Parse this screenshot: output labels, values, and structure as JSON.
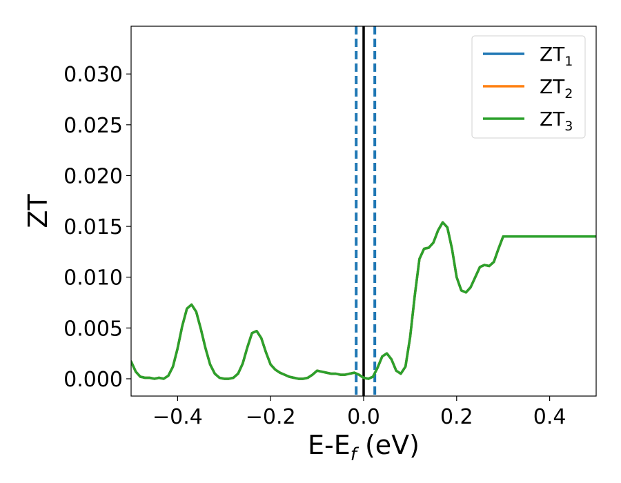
{
  "chart_data": {
    "type": "line",
    "xlabel": "E-E",
    "xlabel_sub": "f",
    "xlabel_unit": " (eV)",
    "ylabel": "ZT",
    "xlim": [
      -0.5,
      0.5
    ],
    "ylim": [
      -0.0017,
      0.0347
    ],
    "xticks": [
      -0.4,
      -0.2,
      0.0,
      0.2,
      0.4
    ],
    "xtick_labels": [
      "−0.4",
      "−0.2",
      "0.0",
      "0.2",
      "0.4"
    ],
    "yticks": [
      0.0,
      0.005,
      0.01,
      0.015,
      0.02,
      0.025,
      0.03
    ],
    "ytick_labels": [
      "0.000",
      "0.005",
      "0.010",
      "0.015",
      "0.020",
      "0.025",
      "0.030"
    ],
    "legend_position": "top-right",
    "series": [
      {
        "name": "ZT",
        "name_sub": "1",
        "color": "#1f77b4",
        "x": [
          -0.5,
          -0.49,
          -0.48,
          -0.47,
          -0.46,
          -0.45,
          -0.44,
          -0.43,
          -0.42,
          -0.41,
          -0.4,
          -0.39,
          -0.38,
          -0.37,
          -0.36,
          -0.35,
          -0.34,
          -0.33,
          -0.32,
          -0.31,
          -0.3,
          -0.29,
          -0.28,
          -0.27,
          -0.26,
          -0.25,
          -0.24,
          -0.23,
          -0.22,
          -0.21,
          -0.2,
          -0.19,
          -0.18,
          -0.17,
          -0.16,
          -0.15,
          -0.14,
          -0.13,
          -0.12,
          -0.11,
          -0.1,
          -0.09,
          -0.08,
          -0.07,
          -0.06,
          -0.05,
          -0.04,
          -0.03,
          -0.02,
          -0.01,
          0.0,
          0.01,
          0.02,
          0.03,
          0.04,
          0.05,
          0.06,
          0.07,
          0.08,
          0.09,
          0.1,
          0.11,
          0.12,
          0.13,
          0.14,
          0.15,
          0.16,
          0.17,
          0.18,
          0.19,
          0.2,
          0.21,
          0.22,
          0.23,
          0.24,
          0.25,
          0.26,
          0.27,
          0.28,
          0.29,
          0.3,
          0.31,
          0.32,
          0.33,
          0.34,
          0.35,
          0.36,
          0.37,
          0.38,
          0.39,
          0.4,
          0.41,
          0.42,
          0.43,
          0.44,
          0.45,
          0.46,
          0.47,
          0.48,
          0.49,
          0.5
        ],
        "y": [
          0.0017,
          0.0007,
          0.0002,
          0.0001,
          0.0001,
          0.0,
          0.0001,
          0.0,
          0.0003,
          0.0012,
          0.003,
          0.0052,
          0.0069,
          0.0073,
          0.0066,
          0.0049,
          0.003,
          0.0014,
          0.0005,
          0.0001,
          0.0,
          0.0,
          0.0001,
          0.0005,
          0.0015,
          0.0031,
          0.0045,
          0.0047,
          0.004,
          0.0026,
          0.0014,
          0.0009,
          0.0006,
          0.0004,
          0.0002,
          0.0001,
          0.0,
          0.0,
          0.0001,
          0.0004,
          0.0008,
          0.0007,
          0.0006,
          0.0005,
          0.0005,
          0.0004,
          0.0004,
          0.0005,
          0.0006,
          0.0004,
          0.0001,
          0.0,
          0.0002,
          0.0011,
          0.0022,
          0.0025,
          0.0019,
          0.0008,
          0.0005,
          0.0012,
          0.0041,
          0.0082,
          0.0118,
          0.0128,
          0.0129,
          0.0134,
          0.0146,
          0.0154,
          0.0149,
          0.0128,
          0.01,
          0.0087,
          0.0085,
          0.009,
          0.01,
          0.011,
          0.0112,
          0.0111,
          0.0115,
          0.0128,
          0.014,
          0.014,
          0.014,
          0.014,
          0.014,
          0.014,
          0.014,
          0.014,
          0.014,
          0.014,
          0.014,
          0.014,
          0.014,
          0.014,
          0.014,
          0.014,
          0.014,
          0.014,
          0.014,
          0.014,
          0.014
        ]
      },
      {
        "name": "ZT",
        "name_sub": "2",
        "color": "#ff7f0e",
        "x": [],
        "y": []
      },
      {
        "name": "ZT",
        "name_sub": "3",
        "color": "#2ca02c",
        "x": [],
        "y": []
      }
    ],
    "vertical_lines": [
      {
        "x": 0.0,
        "color": "#000000",
        "style": "solid"
      },
      {
        "x": -0.016,
        "color": "#1f77b4",
        "style": "dashed"
      },
      {
        "x": 0.024,
        "color": "#1f77b4",
        "style": "dashed"
      }
    ]
  }
}
